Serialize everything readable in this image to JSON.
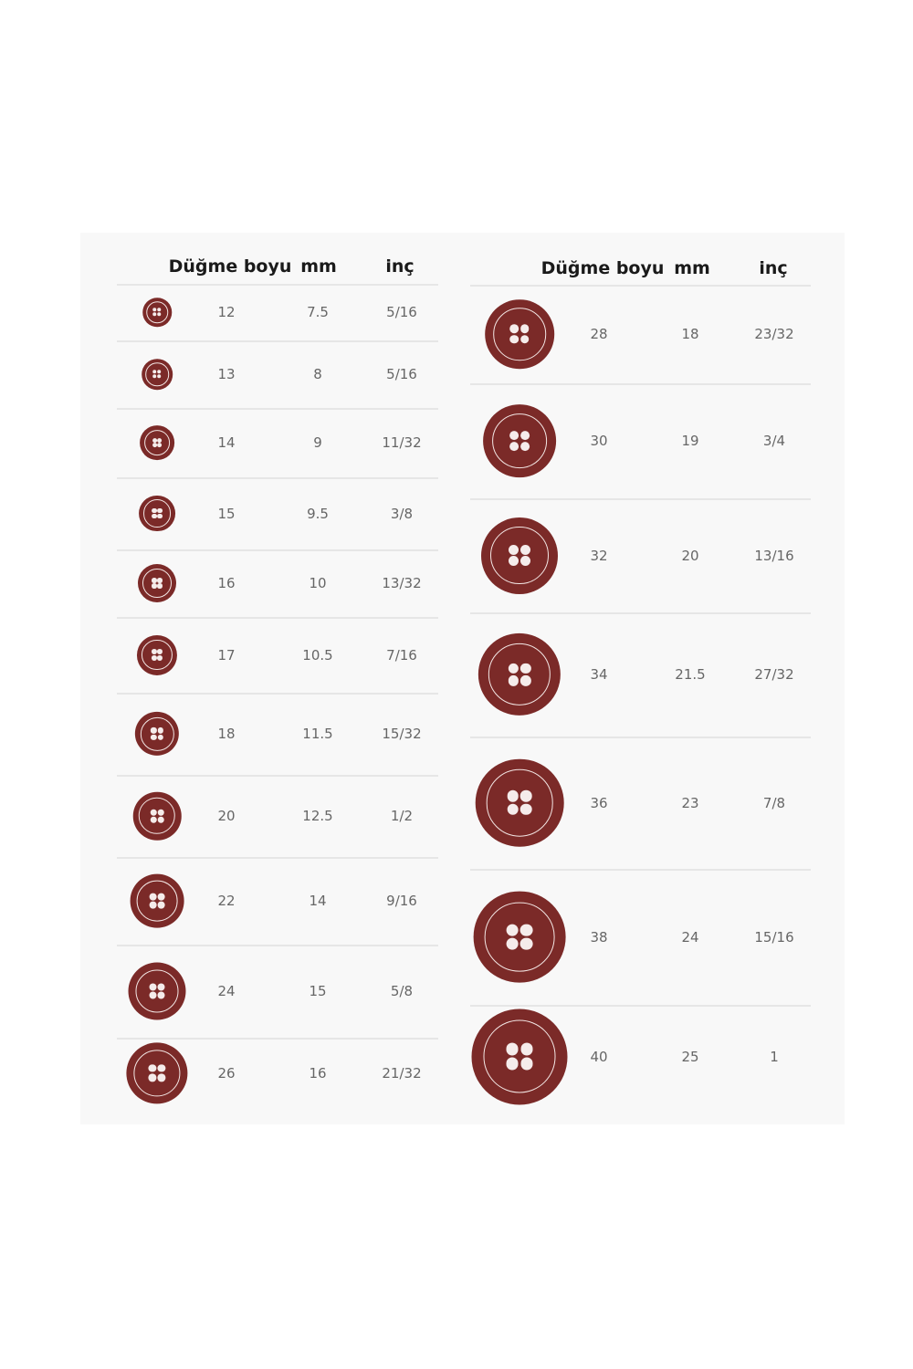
{
  "colors": {
    "button": "#7b2a28",
    "panel": "#f8f8f8",
    "divider": "#e6e6e6"
  },
  "left_table": {
    "headers": {
      "size": "Düğme boyu",
      "mm": "mm",
      "inch": "inç"
    },
    "rows": [
      {
        "size": "12",
        "mm": "7.5",
        "inch": "5/16"
      },
      {
        "size": "13",
        "mm": "8",
        "inch": "5/16"
      },
      {
        "size": "14",
        "mm": "9",
        "inch": "11/32"
      },
      {
        "size": "15",
        "mm": "9.5",
        "inch": "3/8"
      },
      {
        "size": "16",
        "mm": "10",
        "inch": "13/32"
      },
      {
        "size": "17",
        "mm": "10.5",
        "inch": "7/16"
      },
      {
        "size": "18",
        "mm": "11.5",
        "inch": "15/32"
      },
      {
        "size": "20",
        "mm": "12.5",
        "inch": "1/2"
      },
      {
        "size": "22",
        "mm": "14",
        "inch": "9/16"
      },
      {
        "size": "24",
        "mm": "15",
        "inch": "5/8"
      },
      {
        "size": "26",
        "mm": "16",
        "inch": "21/32"
      }
    ]
  },
  "right_table": {
    "headers": {
      "size": "Düğme boyu",
      "mm": "mm",
      "inch": "inç"
    },
    "rows": [
      {
        "size": "28",
        "mm": "18",
        "inch": "23/32"
      },
      {
        "size": "30",
        "mm": "19",
        "inch": "3/4"
      },
      {
        "size": "32",
        "mm": "20",
        "inch": "13/16"
      },
      {
        "size": "34",
        "mm": "21.5",
        "inch": "27/32"
      },
      {
        "size": "36",
        "mm": "23",
        "inch": "7/8"
      },
      {
        "size": "38",
        "mm": "24",
        "inch": "15/16"
      },
      {
        "size": "40",
        "mm": "25",
        "inch": "1"
      }
    ]
  }
}
